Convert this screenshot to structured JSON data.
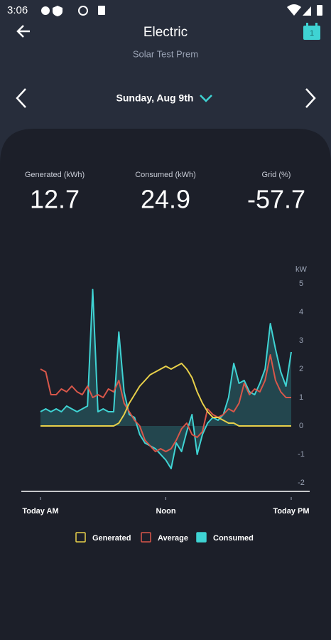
{
  "status_bar": {
    "time": "3:06"
  },
  "header": {
    "title": "Electric",
    "subtitle": "Solar Test Prem",
    "calendar_day": "1"
  },
  "date_nav": {
    "date": "Sunday, Aug 9th"
  },
  "stats": [
    {
      "label": "Generated (kWh)",
      "value": 12.7
    },
    {
      "label": "Consumed (kWh)",
      "value": 24.9
    },
    {
      "label": "Grid (%)",
      "value": -57.7
    }
  ],
  "chart_data": {
    "type": "line",
    "y_label": "kW",
    "x": [
      0,
      0.5,
      1,
      1.5,
      2,
      2.5,
      3,
      3.5,
      4,
      4.5,
      5,
      5.5,
      6,
      6.5,
      7,
      7.5,
      8,
      8.5,
      9,
      9.5,
      10,
      10.5,
      11,
      11.5,
      12,
      12.5,
      13,
      13.5,
      14,
      14.5,
      15,
      15.5,
      16,
      16.5,
      17,
      17.5,
      18,
      18.5,
      19,
      19.5,
      20,
      20.5,
      21,
      21.5,
      22,
      22.5,
      23,
      23.5,
      24
    ],
    "xlim": [
      0,
      24
    ],
    "xticks": [
      {
        "value": 0,
        "label": "Today AM"
      },
      {
        "value": 12,
        "label": "Noon"
      },
      {
        "value": 24,
        "label": "Today PM"
      }
    ],
    "ylim": [
      -2.3,
      5.5
    ],
    "yticks": [
      5,
      4,
      3,
      2,
      1,
      0,
      -1,
      -2
    ],
    "series": [
      {
        "name": "Generated",
        "color": "#e8d04a",
        "values": [
          0,
          0,
          0,
          0,
          0,
          0,
          0,
          0,
          0,
          0,
          0,
          0,
          0,
          0,
          0,
          0.1,
          0.4,
          0.8,
          1.1,
          1.4,
          1.6,
          1.8,
          1.9,
          2.0,
          2.1,
          2.0,
          2.1,
          2.2,
          2.0,
          1.7,
          1.2,
          0.8,
          0.5,
          0.3,
          0.3,
          0.2,
          0.1,
          0.1,
          0,
          0,
          0,
          0,
          0,
          0,
          0,
          0,
          0,
          0,
          0
        ]
      },
      {
        "name": "Average",
        "color": "#d9574a",
        "values": [
          2.0,
          1.9,
          1.1,
          1.1,
          1.3,
          1.2,
          1.4,
          1.2,
          1.1,
          1.4,
          1.0,
          1.1,
          1.0,
          1.3,
          1.2,
          1.6,
          0.8,
          0.5,
          0.2,
          0.0,
          -0.5,
          -0.7,
          -0.9,
          -0.8,
          -0.9,
          -0.8,
          -0.5,
          -0.1,
          0.1,
          -0.3,
          -0.4,
          -0.2,
          0.6,
          0.4,
          0.3,
          0.4,
          0.6,
          0.5,
          0.8,
          1.5,
          1.1,
          1.3,
          1.2,
          1.6,
          2.5,
          1.6,
          1.2,
          1.0,
          1.0
        ]
      },
      {
        "name": "Consumed",
        "color": "#3fd3d3",
        "fill": true,
        "values": [
          0.5,
          0.6,
          0.5,
          0.6,
          0.5,
          0.7,
          0.6,
          0.5,
          0.6,
          0.7,
          4.8,
          0.5,
          0.6,
          0.5,
          0.5,
          3.3,
          1.2,
          0.4,
          0.3,
          -0.3,
          -0.6,
          -0.7,
          -0.8,
          -1.0,
          -1.2,
          -1.5,
          -0.6,
          -0.9,
          -0.2,
          0.4,
          -1.0,
          -0.3,
          0.1,
          0.3,
          0.2,
          0.4,
          1.0,
          2.2,
          1.5,
          1.6,
          1.2,
          1.1,
          1.5,
          2.0,
          3.6,
          2.7,
          1.9,
          1.4,
          2.6
        ]
      }
    ]
  }
}
